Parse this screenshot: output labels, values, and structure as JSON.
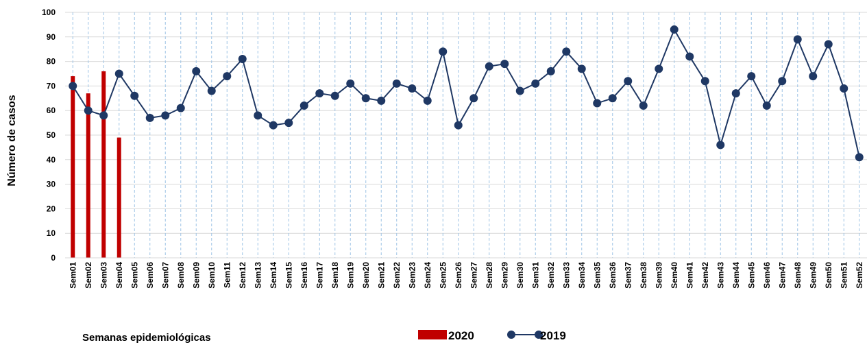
{
  "chart_data": {
    "type": "bar",
    "ylabel": "Número de casos",
    "xlabel": "Semanas epidemiológicas",
    "categories": [
      "Sem01",
      "Sem02",
      "Sem03",
      "Sem04",
      "Sem05",
      "Sem06",
      "Sem07",
      "Sem08",
      "Sem09",
      "Sem10",
      "Sem11",
      "Sem12",
      "Sem13",
      "Sem14",
      "Sem15",
      "Sem16",
      "Sem17",
      "Sem18",
      "Sem19",
      "Sem20",
      "Sem21",
      "Sem22",
      "Sem23",
      "Sem24",
      "Sem25",
      "Sem26",
      "Sem27",
      "Sem28",
      "Sem29",
      "Sem30",
      "Sem31",
      "Sem32",
      "Sem33",
      "Sem34",
      "Sem35",
      "Sem36",
      "Sem37",
      "Sem38",
      "Sem39",
      "Sem40",
      "Sem41",
      "Sem42",
      "Sem43",
      "Sem44",
      "Sem45",
      "Sem46",
      "Sem47",
      "Sem48",
      "Sem49",
      "Sem50",
      "Sem51",
      "Sem52"
    ],
    "series": [
      {
        "name": "2020",
        "type": "bar",
        "color": "#c00000",
        "values": [
          74,
          67,
          76,
          49,
          null,
          null,
          null,
          null,
          null,
          null,
          null,
          null,
          null,
          null,
          null,
          null,
          null,
          null,
          null,
          null,
          null,
          null,
          null,
          null,
          null,
          null,
          null,
          null,
          null,
          null,
          null,
          null,
          null,
          null,
          null,
          null,
          null,
          null,
          null,
          null,
          null,
          null,
          null,
          null,
          null,
          null,
          null,
          null,
          null,
          null,
          null,
          null
        ]
      },
      {
        "name": "2019",
        "type": "line",
        "color": "#1f3864",
        "values": [
          70,
          60,
          58,
          75,
          66,
          57,
          58,
          61,
          76,
          68,
          74,
          81,
          58,
          54,
          55,
          62,
          67,
          66,
          71,
          65,
          64,
          71,
          69,
          64,
          84,
          54,
          65,
          78,
          79,
          68,
          71,
          76,
          84,
          77,
          63,
          65,
          72,
          62,
          77,
          93,
          82,
          72,
          46,
          67,
          74,
          62,
          72,
          89,
          74,
          87,
          69,
          41
        ]
      }
    ],
    "ylim": [
      0,
      100
    ],
    "yticks": [
      0,
      10,
      20,
      30,
      40,
      50,
      60,
      70,
      80,
      90,
      100
    ],
    "grid": true
  }
}
